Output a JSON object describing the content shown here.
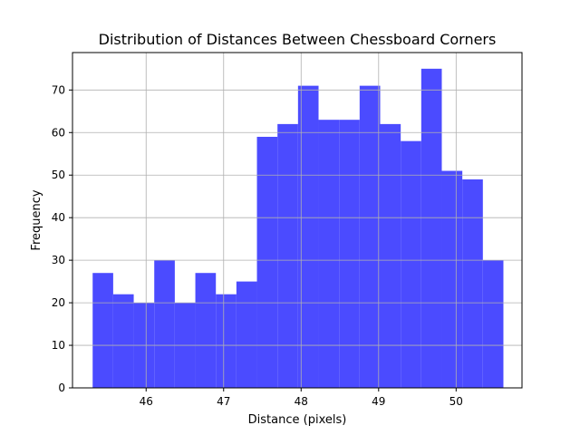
{
  "chart_data": {
    "type": "bar",
    "title": "Distribution of Distances Between Chessboard Corners",
    "xlabel": "Distance (pixels)",
    "ylabel": "Frequency",
    "xlim": [
      45.05,
      50.85
    ],
    "ylim": [
      0,
      78.8
    ],
    "xticks": [
      46,
      47,
      48,
      49,
      50
    ],
    "yticks": [
      0,
      10,
      20,
      30,
      40,
      50,
      60,
      70
    ],
    "grid": true,
    "bar_color": "#4b4bff",
    "bins": [
      {
        "x0": 45.31,
        "x1": 45.575,
        "count": 27
      },
      {
        "x0": 45.575,
        "x1": 45.84,
        "count": 22
      },
      {
        "x0": 45.84,
        "x1": 46.105,
        "count": 20
      },
      {
        "x0": 46.105,
        "x1": 46.37,
        "count": 30
      },
      {
        "x0": 46.37,
        "x1": 46.635,
        "count": 20
      },
      {
        "x0": 46.635,
        "x1": 46.9,
        "count": 27
      },
      {
        "x0": 46.9,
        "x1": 47.165,
        "count": 22
      },
      {
        "x0": 47.165,
        "x1": 47.43,
        "count": 25
      },
      {
        "x0": 47.43,
        "x1": 47.695,
        "count": 59
      },
      {
        "x0": 47.695,
        "x1": 47.96,
        "count": 62
      },
      {
        "x0": 47.96,
        "x1": 48.225,
        "count": 71
      },
      {
        "x0": 48.225,
        "x1": 48.49,
        "count": 63
      },
      {
        "x0": 48.49,
        "x1": 48.755,
        "count": 63
      },
      {
        "x0": 48.755,
        "x1": 49.02,
        "count": 71
      },
      {
        "x0": 49.02,
        "x1": 49.285,
        "count": 62
      },
      {
        "x0": 49.285,
        "x1": 49.55,
        "count": 58
      },
      {
        "x0": 49.55,
        "x1": 49.815,
        "count": 75
      },
      {
        "x0": 49.815,
        "x1": 50.08,
        "count": 51
      },
      {
        "x0": 50.08,
        "x1": 50.345,
        "count": 49
      },
      {
        "x0": 50.345,
        "x1": 50.61,
        "count": 30
      }
    ]
  }
}
